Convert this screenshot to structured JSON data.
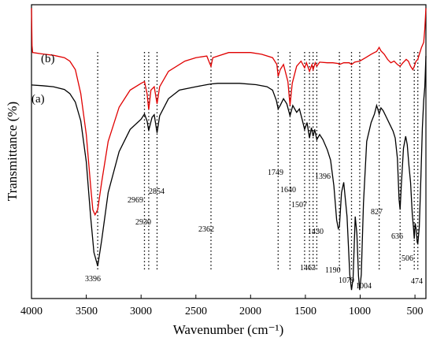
{
  "chart_data": {
    "type": "line",
    "xlabel": "Wavenumber (cm⁻¹)",
    "ylabel": "Transmittance (%)",
    "xlim": [
      4000,
      400
    ],
    "x_reversed": true,
    "xticks": [
      4000,
      3500,
      3000,
      2500,
      2000,
      1500,
      1000,
      500
    ],
    "y_tick_labels": false,
    "grid": false,
    "series_labels": [
      "(b)",
      "(a)"
    ],
    "colors": {
      "a": "#000000",
      "b": "#e00000"
    },
    "series": [
      {
        "name": "(a)",
        "points": [
          [
            4000,
            86.5
          ],
          [
            3900,
            86.3
          ],
          [
            3800,
            86.0
          ],
          [
            3700,
            85.2
          ],
          [
            3650,
            84.0
          ],
          [
            3600,
            81.5
          ],
          [
            3550,
            76.0
          ],
          [
            3500,
            64.0
          ],
          [
            3460,
            48.0
          ],
          [
            3430,
            37.5
          ],
          [
            3396,
            33.5
          ],
          [
            3360,
            41.0
          ],
          [
            3300,
            55.0
          ],
          [
            3200,
            67.0
          ],
          [
            3100,
            73.5
          ],
          [
            3000,
            76.5
          ],
          [
            2969,
            78.0
          ],
          [
            2945,
            76.0
          ],
          [
            2930,
            73.2
          ],
          [
            2900,
            77.0
          ],
          [
            2880,
            77.8
          ],
          [
            2854,
            72.5
          ],
          [
            2830,
            77.5
          ],
          [
            2750,
            82.5
          ],
          [
            2650,
            85.0
          ],
          [
            2500,
            86.0
          ],
          [
            2400,
            86.6
          ],
          [
            2362,
            86.8
          ],
          [
            2300,
            87.0
          ],
          [
            2100,
            87.0
          ],
          [
            1950,
            86.6
          ],
          [
            1850,
            86.0
          ],
          [
            1800,
            85.0
          ],
          [
            1765,
            82.0
          ],
          [
            1749,
            79.5
          ],
          [
            1730,
            80.5
          ],
          [
            1700,
            82.5
          ],
          [
            1670,
            81.0
          ],
          [
            1640,
            77.5
          ],
          [
            1615,
            80.5
          ],
          [
            1580,
            78.5
          ],
          [
            1555,
            79.5
          ],
          [
            1530,
            76.5
          ],
          [
            1507,
            73.5
          ],
          [
            1485,
            75.5
          ],
          [
            1463,
            71.0
          ],
          [
            1445,
            74.0
          ],
          [
            1430,
            71.5
          ],
          [
            1415,
            73.5
          ],
          [
            1396,
            70.5
          ],
          [
            1370,
            72.0
          ],
          [
            1340,
            70.5
          ],
          [
            1300,
            67.5
          ],
          [
            1270,
            64.5
          ],
          [
            1240,
            57.0
          ],
          [
            1215,
            47.0
          ],
          [
            1200,
            44.5
          ],
          [
            1190,
            45.0
          ],
          [
            1170,
            55.0
          ],
          [
            1150,
            58.0
          ],
          [
            1120,
            48.0
          ],
          [
            1095,
            31.0
          ],
          [
            1079,
            26.5
          ],
          [
            1065,
            30.0
          ],
          [
            1045,
            48.0
          ],
          [
            1030,
            43.0
          ],
          [
            1015,
            30.5
          ],
          [
            1004,
            26.5
          ],
          [
            990,
            31.0
          ],
          [
            970,
            52.0
          ],
          [
            940,
            70.0
          ],
          [
            900,
            75.5
          ],
          [
            870,
            78.0
          ],
          [
            850,
            80.5
          ],
          [
            835,
            79.0
          ],
          [
            827,
            78.0
          ],
          [
            810,
            79.8
          ],
          [
            790,
            79.0
          ],
          [
            760,
            77.0
          ],
          [
            730,
            75.0
          ],
          [
            700,
            73.0
          ],
          [
            680,
            71.0
          ],
          [
            660,
            65.0
          ],
          [
            645,
            53.0
          ],
          [
            636,
            50.0
          ],
          [
            625,
            57.0
          ],
          [
            605,
            68.0
          ],
          [
            585,
            71.5
          ],
          [
            570,
            69.0
          ],
          [
            555,
            63.0
          ],
          [
            540,
            58.0
          ],
          [
            525,
            49.0
          ],
          [
            514,
            45.0
          ],
          [
            506,
            41.5
          ],
          [
            498,
            46.0
          ],
          [
            488,
            44.0
          ],
          [
            480,
            40.5
          ],
          [
            474,
            40.0
          ],
          [
            460,
            45.0
          ],
          [
            445,
            60.0
          ],
          [
            432,
            74.0
          ],
          [
            420,
            82.0
          ],
          [
            410,
            86.0
          ],
          [
            400,
            95.0
          ]
        ]
      },
      {
        "name": "(b)",
        "points": [
          [
            4000,
            109.0
          ],
          [
            3995,
            98.0
          ],
          [
            3990,
            96.0
          ],
          [
            3900,
            95.6
          ],
          [
            3800,
            95.2
          ],
          [
            3700,
            94.5
          ],
          [
            3650,
            93.5
          ],
          [
            3600,
            91.0
          ],
          [
            3550,
            84.0
          ],
          [
            3500,
            72.0
          ],
          [
            3460,
            57.0
          ],
          [
            3440,
            50.0
          ],
          [
            3420,
            48.5
          ],
          [
            3396,
            50.0
          ],
          [
            3360,
            58.0
          ],
          [
            3300,
            70.0
          ],
          [
            3200,
            80.0
          ],
          [
            3100,
            85.0
          ],
          [
            3000,
            87.0
          ],
          [
            2969,
            87.5
          ],
          [
            2945,
            84.0
          ],
          [
            2930,
            79.3
          ],
          [
            2910,
            85.0
          ],
          [
            2880,
            86.0
          ],
          [
            2854,
            81.0
          ],
          [
            2830,
            86.0
          ],
          [
            2750,
            90.5
          ],
          [
            2600,
            93.5
          ],
          [
            2500,
            94.5
          ],
          [
            2400,
            95.0
          ],
          [
            2375,
            93.0
          ],
          [
            2362,
            92.0
          ],
          [
            2345,
            94.5
          ],
          [
            2200,
            96.0
          ],
          [
            2000,
            96.0
          ],
          [
            1900,
            95.5
          ],
          [
            1800,
            94.5
          ],
          [
            1760,
            92.5
          ],
          [
            1749,
            89.0
          ],
          [
            1730,
            91.0
          ],
          [
            1700,
            92.5
          ],
          [
            1660,
            87.5
          ],
          [
            1640,
            80.5
          ],
          [
            1620,
            87.0
          ],
          [
            1580,
            92.0
          ],
          [
            1540,
            93.5
          ],
          [
            1507,
            91.5
          ],
          [
            1490,
            93.0
          ],
          [
            1463,
            90.5
          ],
          [
            1440,
            92.5
          ],
          [
            1430,
            91.0
          ],
          [
            1410,
            93.0
          ],
          [
            1396,
            92.0
          ],
          [
            1370,
            93.2
          ],
          [
            1300,
            93.0
          ],
          [
            1250,
            93.0
          ],
          [
            1200,
            92.8
          ],
          [
            1190,
            92.5
          ],
          [
            1150,
            93.0
          ],
          [
            1100,
            93.0
          ],
          [
            1079,
            92.5
          ],
          [
            1050,
            93.2
          ],
          [
            1004,
            93.5
          ],
          [
            950,
            94.5
          ],
          [
            900,
            95.5
          ],
          [
            870,
            96.0
          ],
          [
            850,
            96.3
          ],
          [
            827,
            97.5
          ],
          [
            810,
            96.5
          ],
          [
            780,
            95.5
          ],
          [
            750,
            94.0
          ],
          [
            720,
            93.0
          ],
          [
            690,
            93.5
          ],
          [
            660,
            92.5
          ],
          [
            636,
            92.0
          ],
          [
            610,
            93.0
          ],
          [
            580,
            94.0
          ],
          [
            560,
            93.5
          ],
          [
            540,
            92.0
          ],
          [
            520,
            91.0
          ],
          [
            506,
            92.0
          ],
          [
            490,
            93.5
          ],
          [
            474,
            94.0
          ],
          [
            460,
            95.5
          ],
          [
            440,
            97.5
          ],
          [
            420,
            99.0
          ],
          [
            410,
            103.0
          ],
          [
            400,
            109.0
          ]
        ]
      }
    ],
    "ylim": [
      24,
      110
    ],
    "peak_markers": [
      {
        "x": 3396,
        "label": "3396"
      },
      {
        "x": 2969,
        "label": "2969"
      },
      {
        "x": 2930,
        "label": "2930"
      },
      {
        "x": 2854,
        "label": "2854"
      },
      {
        "x": 2362,
        "label": "2362"
      },
      {
        "x": 1749,
        "label": "1749"
      },
      {
        "x": 1640,
        "label": "1640"
      },
      {
        "x": 1507,
        "label": "1507"
      },
      {
        "x": 1463,
        "label": "1463"
      },
      {
        "x": 1430,
        "label": "1430"
      },
      {
        "x": 1396,
        "label": "1396"
      },
      {
        "x": 1190,
        "label": "1190"
      },
      {
        "x": 1079,
        "label": "1079"
      },
      {
        "x": 1004,
        "label": "1004"
      },
      {
        "x": 827,
        "label": "827"
      },
      {
        "x": 636,
        "label": "636"
      },
      {
        "x": 506,
        "label": "506"
      },
      {
        "x": 474,
        "label": "474"
      }
    ]
  }
}
